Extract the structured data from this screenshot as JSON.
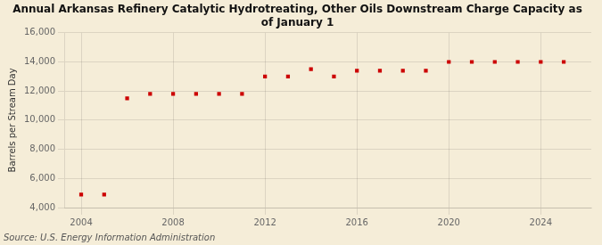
{
  "chart_data": {
    "type": "scatter",
    "title": "Annual Arkansas Refinery Catalytic Hydrotreating, Other Oils Downstream Charge Capacity as\nof January 1",
    "ylabel": "Barrels per Stream Day",
    "source": "Source: U.S. Energy Information Administration",
    "x": [
      2004,
      2005,
      2006,
      2007,
      2008,
      2009,
      2010,
      2011,
      2012,
      2013,
      2014,
      2015,
      2016,
      2017,
      2018,
      2019,
      2020,
      2021,
      2022,
      2023,
      2024,
      2025
    ],
    "values": [
      4900,
      4900,
      11500,
      11800,
      11800,
      11800,
      11800,
      11800,
      13000,
      13000,
      13500,
      13000,
      13400,
      13400,
      13400,
      13400,
      14000,
      14000,
      14000,
      14000,
      14000,
      14000
    ],
    "color": "#cc0000",
    "marker": "square",
    "xlim": [
      2003.3,
      2026.2
    ],
    "ylim": [
      4000,
      16000
    ],
    "xticks": [
      2004,
      2008,
      2012,
      2016,
      2020,
      2024
    ],
    "yticks": [
      {
        "value": 4000,
        "label": "4,000"
      },
      {
        "value": 6000,
        "label": "6,000"
      },
      {
        "value": 8000,
        "label": "8,000"
      },
      {
        "value": 10000,
        "label": "10,000"
      },
      {
        "value": 12000,
        "label": "12,000"
      },
      {
        "value": 14000,
        "label": "14,000"
      },
      {
        "value": 16000,
        "label": "16,000"
      }
    ],
    "grid": true
  }
}
